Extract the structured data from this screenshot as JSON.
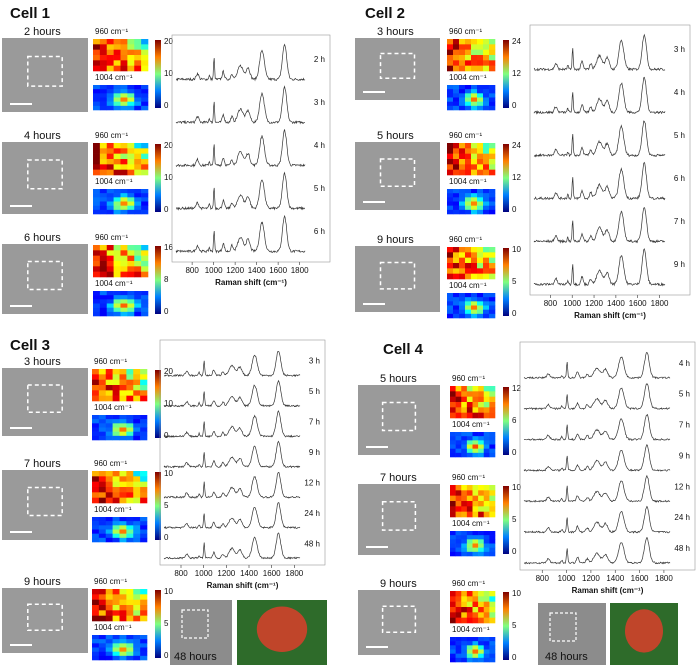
{
  "panels": [
    {
      "title": "Cell 1",
      "images": [
        {
          "label": "2 hours",
          "map_top": "960 cm⁻¹",
          "map_bottom": "1004 cm⁻¹",
          "colorbar_ticks": [
            "20",
            "10",
            "0"
          ]
        },
        {
          "label": "4 hours",
          "map_top": "960 cm⁻¹",
          "map_bottom": "1004 cm⁻¹",
          "colorbar_ticks": [
            "20",
            "10",
            "0"
          ]
        },
        {
          "label": "6 hours",
          "map_top": "960 cm⁻¹",
          "map_bottom": "1004 cm⁻¹",
          "colorbar_ticks": [
            "16",
            "8",
            "0"
          ]
        }
      ],
      "spectra_labels": [
        "2 h",
        "3 h",
        "4 h",
        "5 h",
        "6 h"
      ],
      "x_ticks": [
        "800",
        "1000",
        "1200",
        "1400",
        "1600",
        "1800"
      ],
      "x_label": "Raman shift (cm⁻¹)"
    },
    {
      "title": "Cell 2",
      "images": [
        {
          "label": "3 hours",
          "map_top": "960 cm⁻¹",
          "map_bottom": "1004 cm⁻¹",
          "colorbar_ticks": [
            "24",
            "12",
            "0"
          ]
        },
        {
          "label": "5 hours",
          "map_top": "960 cm⁻¹",
          "map_bottom": "1004 cm⁻¹",
          "colorbar_ticks": [
            "24",
            "12",
            "0"
          ]
        },
        {
          "label": "9 hours",
          "map_top": "960 cm⁻¹",
          "map_bottom": "1004 cm⁻¹",
          "colorbar_ticks": [
            "10",
            "5",
            "0"
          ]
        }
      ],
      "spectra_labels": [
        "3 h",
        "4 h",
        "5 h",
        "6 h",
        "7 h",
        "9 h"
      ],
      "x_ticks": [
        "800",
        "1000",
        "1200",
        "1400",
        "1600",
        "1800"
      ],
      "x_label": "Raman shift (cm⁻¹)"
    },
    {
      "title": "Cell 3",
      "images": [
        {
          "label": "3 hours",
          "map_top": "960 cm⁻¹",
          "map_bottom": "1004 cm⁻¹",
          "colorbar_ticks": [
            "20",
            "10",
            "0"
          ]
        },
        {
          "label": "7 hours",
          "map_top": "960 cm⁻¹",
          "map_bottom": "1004 cm⁻¹",
          "colorbar_ticks": [
            "10",
            "5",
            "0"
          ]
        },
        {
          "label": "9 hours",
          "map_top": "960 cm⁻¹",
          "map_bottom": "1004 cm⁻¹",
          "colorbar_ticks": [
            "10",
            "5",
            "0"
          ]
        }
      ],
      "spectra_labels": [
        "3 h",
        "5 h",
        "7 h",
        "9 h",
        "12 h",
        "24 h",
        "48 h"
      ],
      "x_ticks": [
        "800",
        "1000",
        "1200",
        "1400",
        "1600",
        "1800"
      ],
      "x_label": "Raman shift (cm⁻¹)",
      "extra_label": "48 hours"
    },
    {
      "title": "Cell 4",
      "images": [
        {
          "label": "5 hours",
          "map_top": "960 cm⁻¹",
          "map_bottom": "1004 cm⁻¹",
          "colorbar_ticks": [
            "12",
            "6",
            "0"
          ]
        },
        {
          "label": "7 hours",
          "map_top": "960 cm⁻¹",
          "map_bottom": "1004 cm⁻¹",
          "colorbar_ticks": [
            "10",
            "5",
            "0"
          ]
        },
        {
          "label": "9 hours",
          "map_top": "960 cm⁻¹",
          "map_bottom": "1004 cm⁻¹",
          "colorbar_ticks": [
            "10",
            "5",
            "0"
          ]
        }
      ],
      "spectra_labels": [
        "4 h",
        "5 h",
        "7 h",
        "9 h",
        "12 h",
        "24 h",
        "48 h"
      ],
      "x_ticks": [
        "800",
        "1000",
        "1200",
        "1400",
        "1600",
        "1800"
      ],
      "x_label": "Raman shift (cm⁻¹)",
      "extra_label": "48 hours"
    }
  ]
}
